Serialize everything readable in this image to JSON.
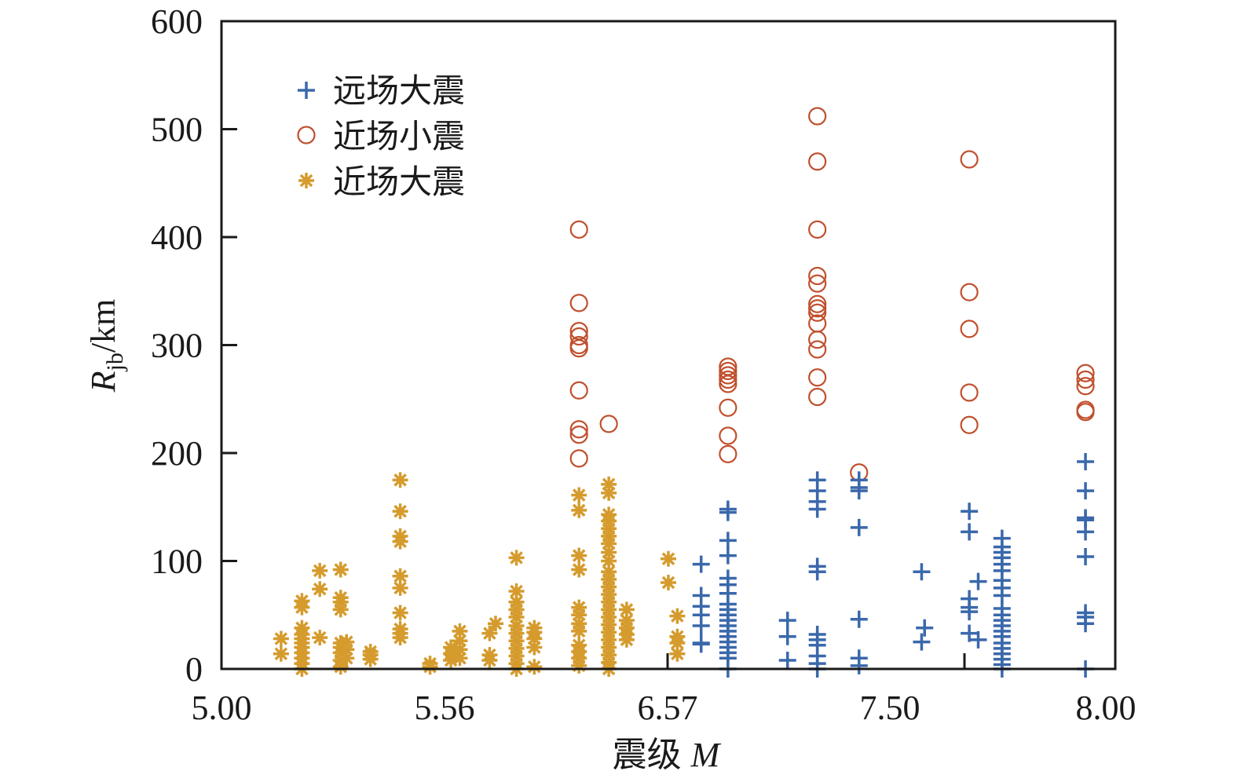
{
  "chart_data": {
    "type": "scatter",
    "title": "",
    "xlabel": "震级",
    "xlabel_var": "M",
    "ylabel_var": "R",
    "ylabel_sub": "jb",
    "ylabel_unit": "/km",
    "xlim": [
      5.0,
      8.0
    ],
    "ylim": [
      0,
      600
    ],
    "grid": false,
    "legend_position": "top-left",
    "x_tick_labels": [
      "5.00",
      "5.56",
      "6.57",
      "7.50",
      "8.00"
    ],
    "y_ticks": [
      0,
      100,
      200,
      300,
      400,
      500,
      600
    ],
    "y_tick_labels": [
      "0",
      "100",
      "200",
      "300",
      "400",
      "500",
      "600"
    ],
    "series": [
      {
        "name": "远场大震",
        "marker": "plus",
        "color": "#3a68ab",
        "points": [
          [
            6.61,
            97
          ],
          [
            6.61,
            68
          ],
          [
            6.61,
            58
          ],
          [
            6.61,
            50
          ],
          [
            6.61,
            40
          ],
          [
            6.61,
            24
          ],
          [
            6.61,
            23
          ],
          [
            6.7,
            148
          ],
          [
            6.7,
            145
          ],
          [
            6.7,
            119
          ],
          [
            6.7,
            105
          ],
          [
            6.7,
            84
          ],
          [
            6.7,
            78
          ],
          [
            6.7,
            70
          ],
          [
            6.7,
            60
          ],
          [
            6.7,
            55
          ],
          [
            6.7,
            50
          ],
          [
            6.7,
            45
          ],
          [
            6.7,
            40
          ],
          [
            6.7,
            35
          ],
          [
            6.7,
            30
          ],
          [
            6.7,
            25
          ],
          [
            6.7,
            20
          ],
          [
            6.7,
            15
          ],
          [
            6.7,
            10
          ],
          [
            6.7,
            0
          ],
          [
            6.9,
            45
          ],
          [
            6.9,
            30
          ],
          [
            6.9,
            8
          ],
          [
            7.0,
            175
          ],
          [
            7.0,
            165
          ],
          [
            7.0,
            155
          ],
          [
            7.0,
            148
          ],
          [
            7.0,
            95
          ],
          [
            7.0,
            90
          ],
          [
            7.0,
            32
          ],
          [
            7.0,
            27
          ],
          [
            7.0,
            22
          ],
          [
            7.0,
            12
          ],
          [
            7.0,
            5
          ],
          [
            7.0,
            0
          ],
          [
            7.14,
            175
          ],
          [
            7.14,
            168
          ],
          [
            7.14,
            165
          ],
          [
            7.14,
            131
          ],
          [
            7.14,
            46
          ],
          [
            7.14,
            10
          ],
          [
            7.14,
            3
          ],
          [
            7.35,
            90
          ],
          [
            7.35,
            25
          ],
          [
            7.36,
            38
          ],
          [
            7.51,
            146
          ],
          [
            7.51,
            127
          ],
          [
            7.51,
            65
          ],
          [
            7.51,
            57
          ],
          [
            7.51,
            53
          ],
          [
            7.51,
            33
          ],
          [
            7.54,
            81
          ],
          [
            7.54,
            27
          ],
          [
            7.62,
            121
          ],
          [
            7.62,
            113
          ],
          [
            7.62,
            108
          ],
          [
            7.62,
            103
          ],
          [
            7.62,
            97
          ],
          [
            7.62,
            91
          ],
          [
            7.62,
            82
          ],
          [
            7.62,
            75
          ],
          [
            7.62,
            68
          ],
          [
            7.62,
            56
          ],
          [
            7.62,
            50
          ],
          [
            7.62,
            45
          ],
          [
            7.62,
            40
          ],
          [
            7.62,
            35
          ],
          [
            7.62,
            30
          ],
          [
            7.62,
            24
          ],
          [
            7.62,
            19
          ],
          [
            7.62,
            14
          ],
          [
            7.62,
            9
          ],
          [
            7.62,
            4
          ],
          [
            7.62,
            0
          ],
          [
            7.9,
            192
          ],
          [
            7.9,
            165
          ],
          [
            7.9,
            140
          ],
          [
            7.9,
            138
          ],
          [
            7.9,
            127
          ],
          [
            7.9,
            104
          ],
          [
            7.9,
            52
          ],
          [
            7.9,
            48
          ],
          [
            7.9,
            42
          ],
          [
            7.9,
            0
          ]
        ]
      },
      {
        "name": "近场小震",
        "marker": "circle",
        "color": "#c0502e",
        "points": [
          [
            6.2,
            407
          ],
          [
            6.2,
            339
          ],
          [
            6.2,
            313
          ],
          [
            6.2,
            308
          ],
          [
            6.2,
            300
          ],
          [
            6.2,
            297
          ],
          [
            6.2,
            258
          ],
          [
            6.2,
            222
          ],
          [
            6.2,
            217
          ],
          [
            6.2,
            195
          ],
          [
            6.3,
            227
          ],
          [
            6.7,
            280
          ],
          [
            6.7,
            276
          ],
          [
            6.7,
            272
          ],
          [
            6.7,
            268
          ],
          [
            6.7,
            264
          ],
          [
            6.7,
            242
          ],
          [
            6.7,
            216
          ],
          [
            6.7,
            199
          ],
          [
            7.0,
            512
          ],
          [
            7.0,
            470
          ],
          [
            7.0,
            407
          ],
          [
            7.0,
            364
          ],
          [
            7.0,
            357
          ],
          [
            7.0,
            338
          ],
          [
            7.0,
            334
          ],
          [
            7.0,
            330
          ],
          [
            7.0,
            320
          ],
          [
            7.0,
            305
          ],
          [
            7.0,
            296
          ],
          [
            7.0,
            270
          ],
          [
            7.0,
            252
          ],
          [
            7.14,
            182
          ],
          [
            7.51,
            472
          ],
          [
            7.51,
            349
          ],
          [
            7.51,
            315
          ],
          [
            7.51,
            256
          ],
          [
            7.51,
            226
          ],
          [
            7.9,
            274
          ],
          [
            7.9,
            268
          ],
          [
            7.9,
            262
          ],
          [
            7.9,
            240
          ],
          [
            7.9,
            238
          ]
        ]
      },
      {
        "name": "近场大震",
        "marker": "asterisk",
        "color": "#d59b2d",
        "points": [
          [
            5.2,
            28
          ],
          [
            5.2,
            14
          ],
          [
            5.27,
            63
          ],
          [
            5.27,
            57
          ],
          [
            5.27,
            38
          ],
          [
            5.27,
            32
          ],
          [
            5.27,
            28
          ],
          [
            5.27,
            24
          ],
          [
            5.27,
            20
          ],
          [
            5.27,
            15
          ],
          [
            5.27,
            10
          ],
          [
            5.27,
            5
          ],
          [
            5.27,
            0
          ],
          [
            5.33,
            91
          ],
          [
            5.33,
            74
          ],
          [
            5.33,
            29
          ],
          [
            5.4,
            92
          ],
          [
            5.4,
            66
          ],
          [
            5.4,
            62
          ],
          [
            5.4,
            55
          ],
          [
            5.4,
            24
          ],
          [
            5.4,
            20
          ],
          [
            5.4,
            15
          ],
          [
            5.4,
            8
          ],
          [
            5.4,
            2
          ],
          [
            5.42,
            25
          ],
          [
            5.42,
            18
          ],
          [
            5.42,
            10
          ],
          [
            5.5,
            16
          ],
          [
            5.5,
            13
          ],
          [
            5.5,
            9
          ],
          [
            5.6,
            175
          ],
          [
            5.6,
            146
          ],
          [
            5.6,
            123
          ],
          [
            5.6,
            118
          ],
          [
            5.6,
            86
          ],
          [
            5.6,
            75
          ],
          [
            5.6,
            52
          ],
          [
            5.6,
            37
          ],
          [
            5.6,
            33
          ],
          [
            5.6,
            29
          ],
          [
            5.7,
            5
          ],
          [
            5.7,
            2
          ],
          [
            5.77,
            20
          ],
          [
            5.77,
            14
          ],
          [
            5.77,
            8
          ],
          [
            5.8,
            35
          ],
          [
            5.8,
            26
          ],
          [
            5.8,
            18
          ],
          [
            5.8,
            10
          ],
          [
            5.9,
            33
          ],
          [
            5.9,
            13
          ],
          [
            5.9,
            8
          ],
          [
            5.92,
            42
          ],
          [
            5.99,
            103
          ],
          [
            5.99,
            72
          ],
          [
            5.99,
            62
          ],
          [
            5.99,
            55
          ],
          [
            5.99,
            48
          ],
          [
            5.99,
            40
          ],
          [
            5.99,
            33
          ],
          [
            5.99,
            26
          ],
          [
            5.99,
            19
          ],
          [
            5.99,
            12
          ],
          [
            5.99,
            5
          ],
          [
            5.99,
            0
          ],
          [
            6.05,
            38
          ],
          [
            6.05,
            34
          ],
          [
            6.05,
            28
          ],
          [
            6.05,
            20
          ],
          [
            6.05,
            2
          ],
          [
            6.2,
            161
          ],
          [
            6.2,
            147
          ],
          [
            6.2,
            105
          ],
          [
            6.2,
            92
          ],
          [
            6.2,
            57
          ],
          [
            6.2,
            50
          ],
          [
            6.2,
            42
          ],
          [
            6.2,
            35
          ],
          [
            6.2,
            22
          ],
          [
            6.2,
            16
          ],
          [
            6.2,
            10
          ],
          [
            6.2,
            3
          ],
          [
            6.3,
            171
          ],
          [
            6.3,
            163
          ],
          [
            6.3,
            143
          ],
          [
            6.3,
            137
          ],
          [
            6.3,
            130
          ],
          [
            6.3,
            123
          ],
          [
            6.3,
            116
          ],
          [
            6.3,
            108
          ],
          [
            6.3,
            100
          ],
          [
            6.3,
            90
          ],
          [
            6.3,
            83
          ],
          [
            6.3,
            76
          ],
          [
            6.3,
            69
          ],
          [
            6.3,
            62
          ],
          [
            6.3,
            55
          ],
          [
            6.3,
            48
          ],
          [
            6.3,
            41
          ],
          [
            6.3,
            34
          ],
          [
            6.3,
            27
          ],
          [
            6.3,
            20
          ],
          [
            6.3,
            13
          ],
          [
            6.3,
            6
          ],
          [
            6.3,
            0
          ],
          [
            6.36,
            55
          ],
          [
            6.36,
            45
          ],
          [
            6.36,
            38
          ],
          [
            6.36,
            32
          ],
          [
            6.36,
            27
          ],
          [
            6.5,
            102
          ],
          [
            6.5,
            80
          ],
          [
            6.53,
            49
          ],
          [
            6.53,
            30
          ],
          [
            6.53,
            24
          ],
          [
            6.53,
            14
          ]
        ]
      }
    ]
  }
}
